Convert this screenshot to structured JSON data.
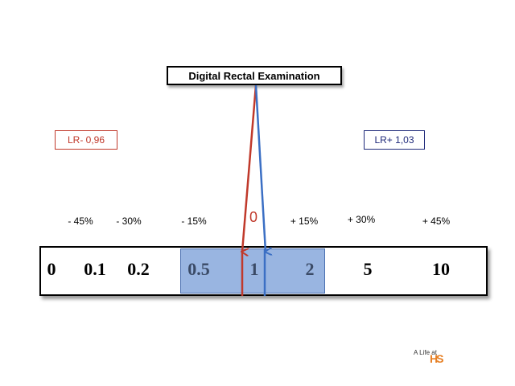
{
  "title": "Digital Rectal Examination",
  "lr_negative": {
    "label": "LR- 0,96",
    "color": "#c0392b"
  },
  "lr_positive": {
    "label": "LR+ 1,03",
    "color": "#1f2a7a"
  },
  "center_label": "0",
  "percent_labels": {
    "n45": "- 45%",
    "n30": "- 30%",
    "n15": "- 15%",
    "p15": "+ 15%",
    "p30": "+ 30%",
    "p45": "+ 45%"
  },
  "scale_values": {
    "v0": "0",
    "v01": "0.1",
    "v02": "0.2",
    "v05": "0.5",
    "v1": "1",
    "v2": "2",
    "v5": "5",
    "v10": "10"
  },
  "highlight_color": "#4678c8",
  "logo": {
    "text": "A Life at",
    "mark": "HS"
  }
}
